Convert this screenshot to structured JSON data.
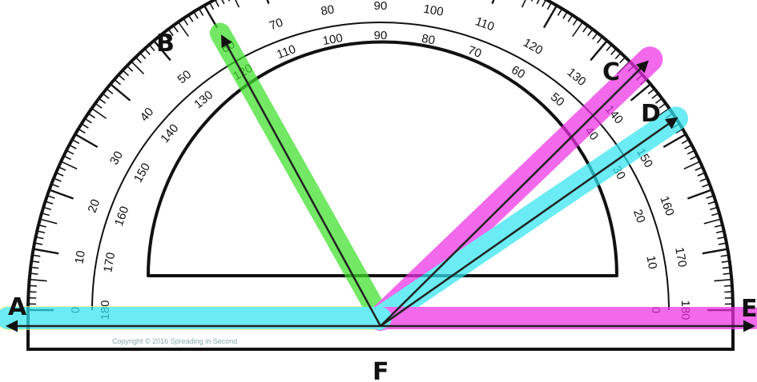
{
  "points": {
    "A": "A",
    "B": "B",
    "C": "C",
    "D": "D",
    "E": "E",
    "F": "F"
  },
  "outer_scale": [
    "0",
    "10",
    "20",
    "30",
    "40",
    "50",
    "60",
    "70",
    "80",
    "90",
    "100",
    "110",
    "120",
    "130",
    "140",
    "150",
    "160",
    "170",
    "180"
  ],
  "inner_scale": [
    "180",
    "170",
    "160",
    "150",
    "140",
    "130",
    "120",
    "110",
    "100",
    "90",
    "80",
    "70",
    "60",
    "50",
    "40",
    "30",
    "20",
    "10",
    "0"
  ],
  "copyright": "Copyright © 2016 Spreading in Second",
  "rays": [
    {
      "name": "FA",
      "to": "A",
      "angle_deg": 180,
      "highlight": "#f6f05a"
    },
    {
      "name": "FB",
      "to": "B",
      "angle_deg": 120,
      "highlight": "#3ee02a"
    },
    {
      "name": "FC",
      "to": "C",
      "angle_deg": 43,
      "highlight": "#f2f04a"
    },
    {
      "name": "FC-pink",
      "to": "C",
      "angle_deg": 43,
      "highlight": "#ee30e6"
    },
    {
      "name": "FD",
      "to": "D",
      "angle_deg": 33,
      "highlight": "#33e6f0"
    },
    {
      "name": "FE",
      "to": "E",
      "angle_deg": 0,
      "highlight": "#ee30e6"
    },
    {
      "name": "FA-cyan",
      "to": "A",
      "angle_deg": 180,
      "highlight": "#33e6f0"
    }
  ],
  "colors": {
    "ink": "#111111",
    "yellow": "#f6f05a",
    "green": "#3ee02a",
    "pink": "#ee30e6",
    "cyan": "#33e6f0"
  }
}
